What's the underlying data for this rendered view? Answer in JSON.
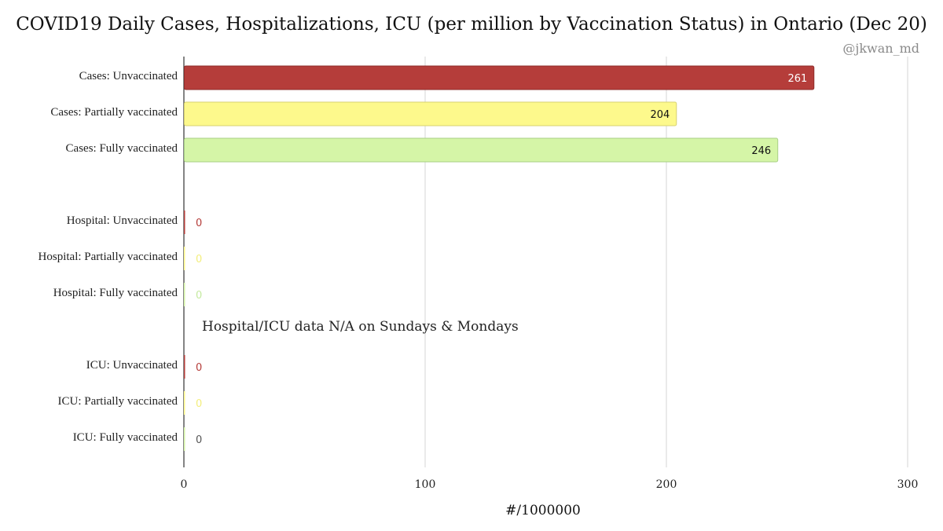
{
  "chart_data": {
    "type": "bar",
    "orientation": "horizontal",
    "title": "COVID19 Daily Cases, Hospitalizations, ICU (per million by Vaccination Status) in Ontario (Dec 20)",
    "credit": "@jkwan_md",
    "xlabel": "#/1000000",
    "ylabel": "",
    "xlim": [
      0,
      300
    ],
    "xticks": [
      0,
      100,
      200,
      300
    ],
    "grid": true,
    "annotation": "Hospital/ICU data N/A on Sundays & Mondays",
    "categories": [
      "Cases: Unvaccinated",
      "Cases: Partially vaccinated",
      "Cases: Fully vaccinated",
      "",
      "Hospital: Unvaccinated",
      "Hospital: Partially vaccinated",
      "Hospital: Fully vaccinated",
      "",
      "ICU: Unvaccinated",
      "ICU: Partially vaccinated",
      "ICU: Fully vaccinated"
    ],
    "values": [
      261,
      204,
      246,
      null,
      0,
      0,
      0,
      null,
      0,
      0,
      0
    ],
    "value_labels": [
      "261",
      "204",
      "246",
      "",
      "0",
      "0",
      "0",
      "",
      "0",
      "0",
      "0"
    ],
    "colors": [
      "#b53d3a",
      "#fdf98c",
      "#d5f5a7",
      "",
      "#b53d3a",
      "#fdf98c",
      "#d5f5a7",
      "",
      "#b53d3a",
      "#fdf98c",
      "#d5f5a7"
    ],
    "label_colors": [
      "#ffffff",
      "#111111",
      "#111111",
      "",
      "#b53d3a",
      "#f3ee7e",
      "#c5eaa0",
      "",
      "#b53d3a",
      "#f3ee7e",
      "#555555"
    ]
  }
}
